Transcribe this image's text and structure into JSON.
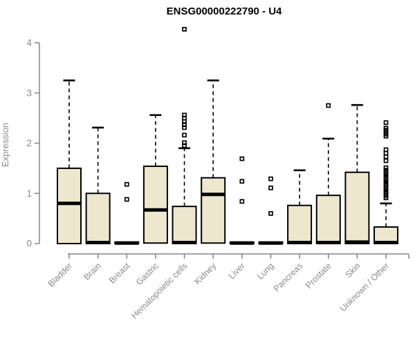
{
  "title": "ENSG00000222790 - U4",
  "chart_data": {
    "type": "boxplot",
    "title": "ENSG00000222790 - U4",
    "ylabel": "Expression",
    "xlabel": "",
    "ylim": [
      0,
      4
    ],
    "yticks": [
      0,
      1,
      2,
      3,
      4
    ],
    "grid": false,
    "legend": "none",
    "categories": [
      "Bladder",
      "Brain",
      "Breast",
      "Gastric",
      "Hematopoietic cells",
      "Kidney",
      "Liver",
      "Lung",
      "Pancreas",
      "Prostate",
      "Skin",
      "Unknown / Other"
    ],
    "boxes": [
      {
        "label": "Bladder",
        "whisker_low": 0,
        "q1": 0.0,
        "median": 0.8,
        "q3": 1.5,
        "whisker_high": 3.25,
        "outliers": []
      },
      {
        "label": "Brain",
        "whisker_low": 0,
        "q1": 0.0,
        "median": 0.02,
        "q3": 1.0,
        "whisker_high": 2.31,
        "outliers": []
      },
      {
        "label": "Breast",
        "whisker_low": 0,
        "q1": 0.0,
        "median": 0.01,
        "q3": 0.03,
        "whisker_high": 0.03,
        "outliers": [
          1.18,
          0.88
        ]
      },
      {
        "label": "Gastric",
        "whisker_low": 0,
        "q1": 0.01,
        "median": 0.67,
        "q3": 1.54,
        "whisker_high": 2.56,
        "outliers": []
      },
      {
        "label": "Hematopoietic cells",
        "whisker_low": 0,
        "q1": 0.0,
        "median": 0.02,
        "q3": 0.74,
        "whisker_high": 1.9,
        "outliers": [
          4.27,
          2.56,
          2.5,
          2.43,
          2.37,
          2.31,
          2.16,
          2.01,
          1.95
        ]
      },
      {
        "label": "Kidney",
        "whisker_low": 0,
        "q1": 0.01,
        "median": 0.98,
        "q3": 1.31,
        "whisker_high": 3.25,
        "outliers": []
      },
      {
        "label": "Liver",
        "whisker_low": 0,
        "q1": 0.0,
        "median": 0.01,
        "q3": 0.03,
        "whisker_high": 0.03,
        "outliers": [
          1.69,
          1.24,
          0.84
        ]
      },
      {
        "label": "Lung",
        "whisker_low": 0,
        "q1": 0.0,
        "median": 0.01,
        "q3": 0.03,
        "whisker_high": 0.03,
        "outliers": [
          1.29,
          1.11,
          0.6
        ]
      },
      {
        "label": "Pancreas",
        "whisker_low": 0,
        "q1": 0.0,
        "median": 0.02,
        "q3": 0.76,
        "whisker_high": 1.46,
        "outliers": []
      },
      {
        "label": "Prostate",
        "whisker_low": 0,
        "q1": 0.0,
        "median": 0.02,
        "q3": 0.96,
        "whisker_high": 2.09,
        "outliers": [
          2.75
        ]
      },
      {
        "label": "Skin",
        "whisker_low": 0,
        "q1": 0.0,
        "median": 0.03,
        "q3": 1.42,
        "whisker_high": 2.76,
        "outliers": []
      },
      {
        "label": "Unknown / Other",
        "whisker_low": 0,
        "q1": 0.0,
        "median": 0.02,
        "q3": 0.33,
        "whisker_high": 0.8,
        "outliers": [
          2.41,
          2.3,
          2.26,
          2.22,
          2.18,
          2.14,
          1.87,
          1.8,
          1.73,
          1.65,
          1.51,
          1.46,
          1.42,
          1.38,
          1.33,
          1.29,
          1.25,
          1.2,
          1.16,
          1.12,
          1.08,
          1.03,
          0.99,
          0.95,
          0.91
        ]
      }
    ]
  },
  "colors": {
    "box_fill": "#EDE8CD",
    "box_stroke": "#000000",
    "median": "#000000",
    "whisker": "#000000",
    "outlier": "#000000",
    "axis": "#848484",
    "tick_label": "#8a8a8a",
    "title": "#000000",
    "background": "#FFFFFF"
  }
}
